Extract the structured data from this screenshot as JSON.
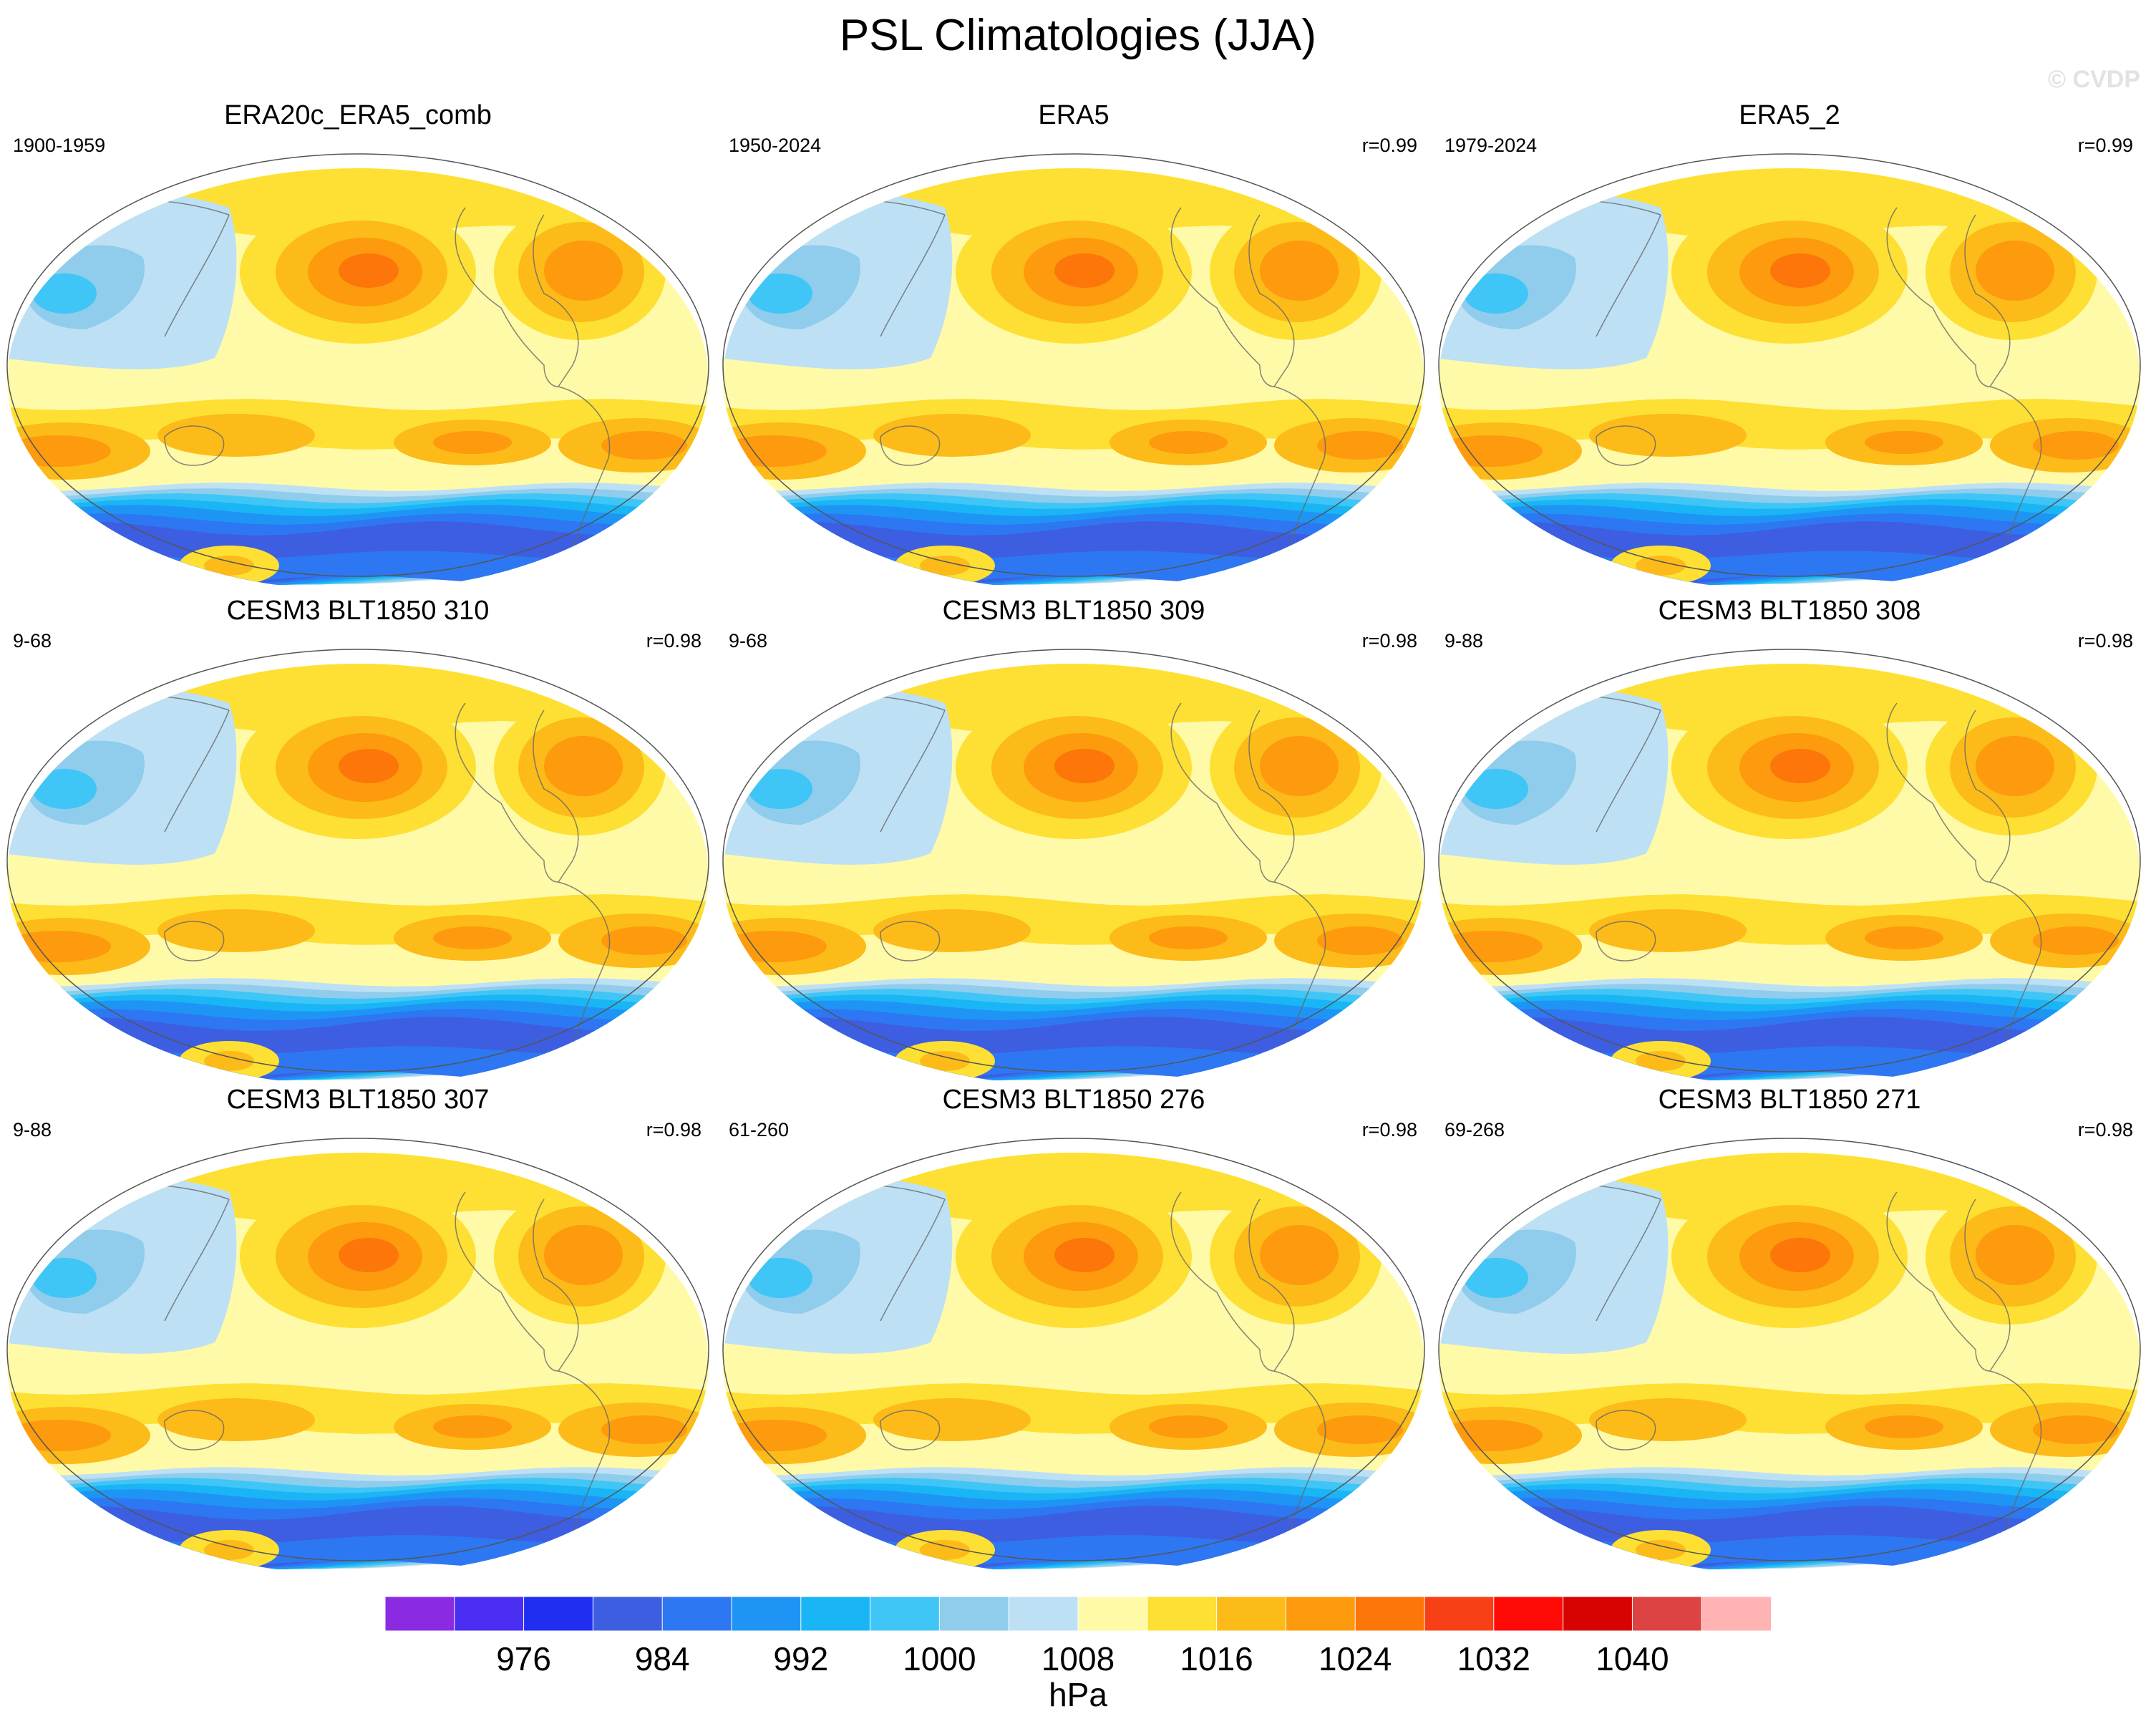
{
  "title": "PSL Climatologies (JJA)",
  "watermark": "© CVDP",
  "panels": [
    {
      "title": "ERA20c_ERA5_comb",
      "range": "1900-1959",
      "corr": ""
    },
    {
      "title": "ERA5",
      "range": "1950-2024",
      "corr": "r=0.99"
    },
    {
      "title": "ERA5_2",
      "range": "1979-2024",
      "corr": "r=0.99"
    },
    {
      "title": "CESM3 BLT1850 310",
      "range": "9-68",
      "corr": "r=0.98"
    },
    {
      "title": "CESM3 BLT1850 309",
      "range": "9-68",
      "corr": "r=0.98"
    },
    {
      "title": "CESM3 BLT1850 308",
      "range": "9-88",
      "corr": "r=0.98"
    },
    {
      "title": "CESM3 BLT1850 307",
      "range": "9-88",
      "corr": "r=0.98"
    },
    {
      "title": "CESM3 BLT1850 276",
      "range": "61-260",
      "corr": "r=0.98"
    },
    {
      "title": "CESM3 BLT1850 271",
      "range": "69-268",
      "corr": "r=0.98"
    }
  ],
  "colorbar": {
    "units": "hPa",
    "labels": [
      "976",
      "984",
      "992",
      "1000",
      "1008",
      "1016",
      "1024",
      "1032",
      "1040"
    ],
    "colors": [
      "#8a2be2",
      "#4a2ef2",
      "#1f2ef0",
      "#3d5ee0",
      "#2e77f2",
      "#1e95f5",
      "#1ab5f5",
      "#3fc6f6",
      "#90ccec",
      "#bde0f5",
      "#fffaa8",
      "#fde033",
      "#fcbb18",
      "#fd9a0d",
      "#fc760a",
      "#f84017",
      "#ff0a06",
      "#d70202",
      "#dc4342",
      "#ffb3b3"
    ]
  }
}
